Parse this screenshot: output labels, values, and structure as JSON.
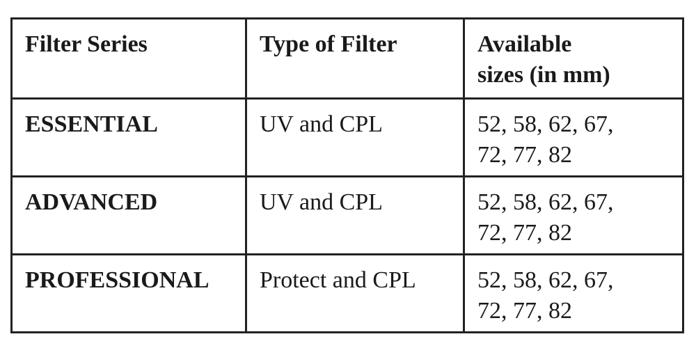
{
  "table": {
    "header": [
      [
        "Filter Series"
      ],
      [
        "Type of Filter"
      ],
      [
        "Available",
        "sizes (in mm)"
      ]
    ],
    "rows": [
      [
        [
          "ESSENTIAL"
        ],
        [
          "UV and CPL"
        ],
        [
          "52, 58, 62, 67,",
          "72, 77, 82"
        ]
      ],
      [
        [
          "ADVANCED"
        ],
        [
          "UV and CPL"
        ],
        [
          "52, 58, 62, 67,",
          "72, 77, 82"
        ]
      ],
      [
        [
          "PROFESSIONAL"
        ],
        [
          "Protect and CPL"
        ],
        [
          "52, 58, 62, 67,",
          "72, 77, 82"
        ]
      ]
    ]
  }
}
